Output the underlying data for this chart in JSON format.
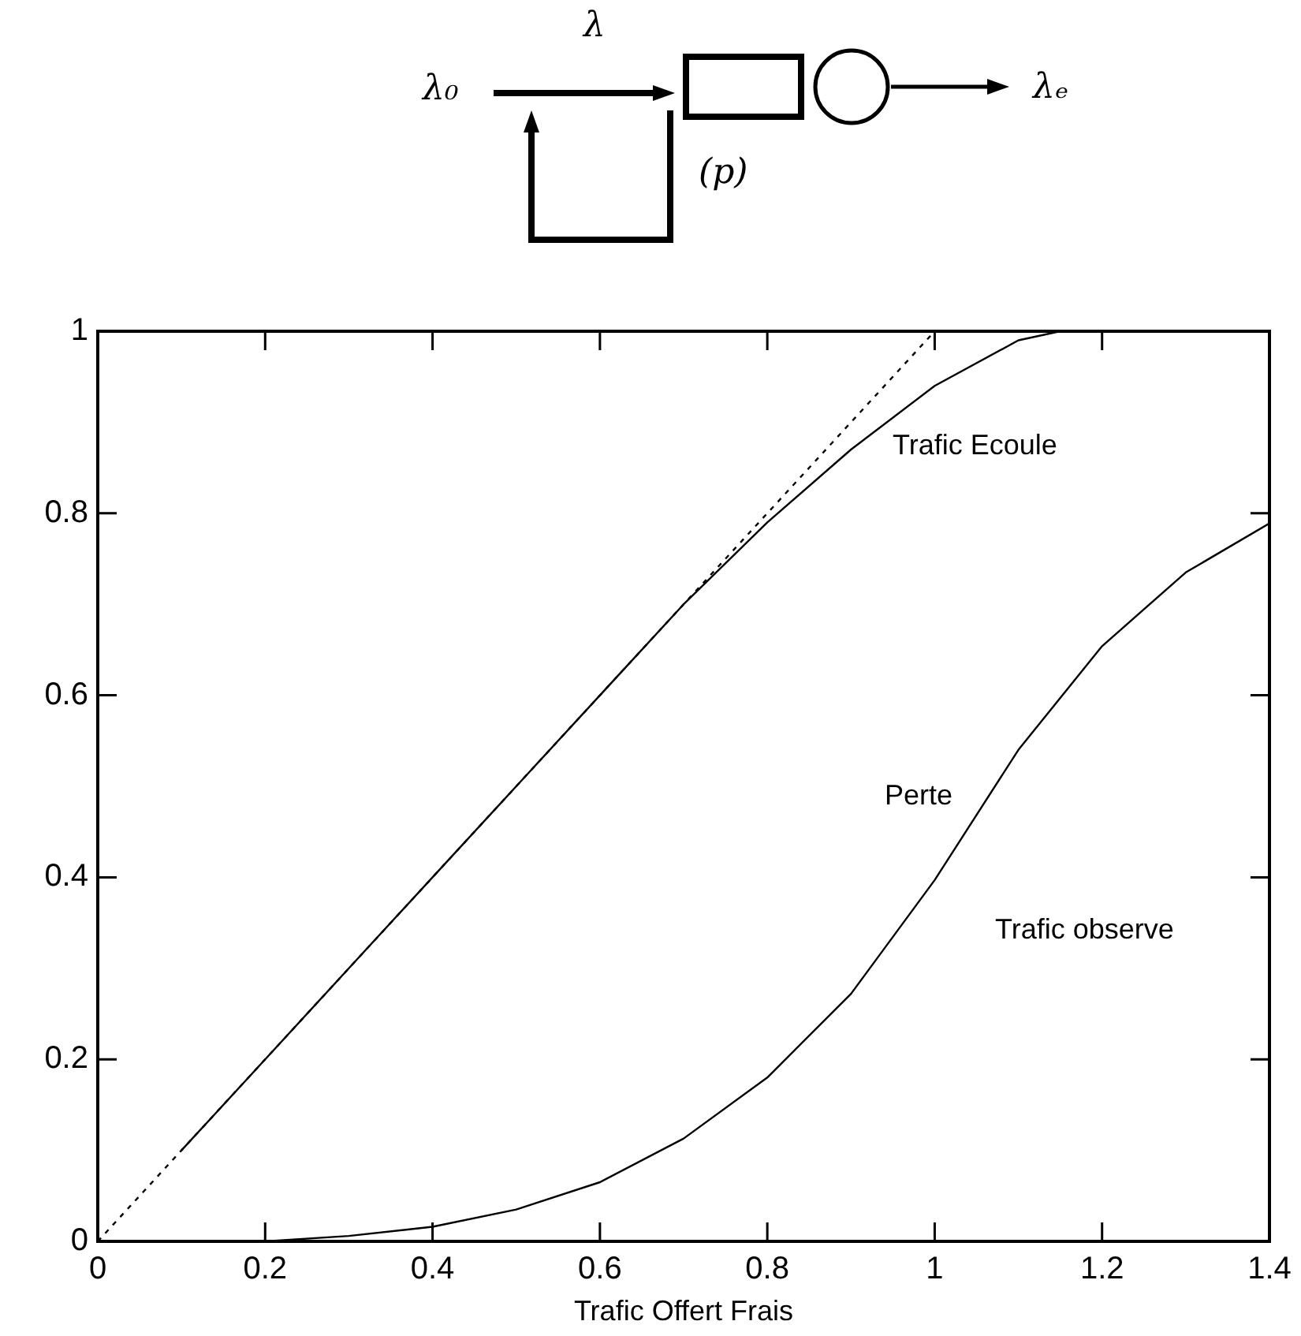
{
  "chart_data": {
    "type": "line",
    "xlabel": "Trafic Offert Frais",
    "xlim": [
      0,
      1.4
    ],
    "xticks": [
      0,
      0.2,
      0.4,
      0.6,
      0.8,
      1,
      1.2,
      1.4
    ],
    "ylim": [
      0,
      1
    ],
    "yticks": [
      0,
      0.2,
      0.4,
      0.6,
      0.8,
      1
    ],
    "grid": false,
    "legend": false,
    "marker": "none",
    "series": [
      {
        "color": "#000000",
        "line_style": "dotted",
        "x": [
          0,
          1
        ],
        "values": [
          0,
          1
        ]
      },
      {
        "color": "#000000",
        "line_style": "solid",
        "x": [
          0.1,
          0.2,
          0.3,
          0.4,
          0.5,
          0.6,
          0.7,
          0.8,
          0.9,
          1.0,
          1.1,
          1.15
        ],
        "values": [
          0.1,
          0.2,
          0.3,
          0.4,
          0.5,
          0.6,
          0.7,
          0.79,
          0.87,
          0.94,
          0.99,
          1.0
        ]
      },
      {
        "color": "#000000",
        "line_style": "solid",
        "x": [
          0.2,
          0.3,
          0.4,
          0.5,
          0.6,
          0.7,
          0.8,
          0.9,
          1.0,
          1.1,
          1.2,
          1.3,
          1.4
        ],
        "values": [
          0,
          0.006,
          0.016,
          0.035,
          0.065,
          0.113,
          0.18,
          0.272,
          0.397,
          0.54,
          0.654,
          0.735,
          0.789
        ]
      }
    ],
    "annotations": [
      "λ₀",
      "λ",
      "(p)",
      "λₑ",
      "Trafic Ecoule",
      "Perte",
      "Trafic observe"
    ]
  }
}
